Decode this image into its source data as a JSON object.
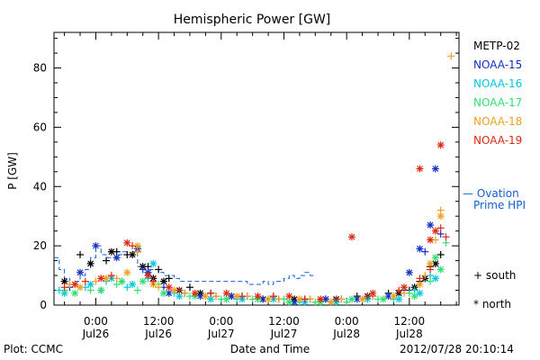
{
  "chart_data": {
    "type": "scatter",
    "title": "Hemispheric Power [GW]",
    "ylabel": "P [GW]",
    "xlabel": "Date and Time",
    "ylim": [
      0,
      92
    ],
    "yticks": [
      0,
      20,
      40,
      60,
      80
    ],
    "xlim_hours": [
      -8,
      69.5
    ],
    "x_ticks": [
      {
        "hour": 0,
        "time": "0:00",
        "date": "Jul26"
      },
      {
        "hour": 12,
        "time": "12:00",
        "date": "Jul26"
      },
      {
        "hour": 24,
        "time": "0:00",
        "date": "Jul27"
      },
      {
        "hour": 36,
        "time": "12:00",
        "date": "Jul27"
      },
      {
        "hour": 48,
        "time": "0:00",
        "date": "Jul28"
      },
      {
        "hour": 60,
        "time": "12:00",
        "date": "Jul28"
      }
    ],
    "legend": [
      "METP-02",
      "NOAA-15",
      "NOAA-16",
      "NOAA-17",
      "NOAA-18",
      "NOAA-19"
    ],
    "colors": {
      "METP-02": "#000000",
      "NOAA-15": "#1030c8",
      "NOAA-16": "#00c8e0",
      "NOAA-17": "#30e070",
      "NOAA-18": "#f0a020",
      "NOAA-19": "#e02810",
      "Ovation": "#1060d0"
    },
    "ovation_label_1": "— Ovation",
    "ovation_label_2": "Prime HPI",
    "marker_south": "+ south",
    "marker_north": "* north",
    "ovation": [
      [
        -8,
        16
      ],
      [
        -7,
        12
      ],
      [
        -6,
        9
      ],
      [
        -5,
        7
      ],
      [
        -4,
        8
      ],
      [
        -3,
        10
      ],
      [
        -2,
        12
      ],
      [
        -1,
        16
      ],
      [
        0,
        20
      ],
      [
        1,
        17
      ],
      [
        2,
        16
      ],
      [
        3,
        16
      ],
      [
        4,
        17
      ],
      [
        5,
        18
      ],
      [
        6,
        17
      ],
      [
        7,
        18
      ],
      [
        8,
        13
      ],
      [
        9,
        13
      ],
      [
        10,
        12
      ],
      [
        11,
        12
      ],
      [
        12,
        11
      ],
      [
        13,
        10
      ],
      [
        14,
        10
      ],
      [
        15,
        9
      ],
      [
        16,
        8
      ],
      [
        17,
        8
      ],
      [
        18,
        8
      ],
      [
        19,
        8
      ],
      [
        20,
        8
      ],
      [
        21,
        8
      ],
      [
        22,
        8
      ],
      [
        23,
        8
      ],
      [
        24,
        8
      ],
      [
        25,
        8
      ],
      [
        26,
        8
      ],
      [
        27,
        8
      ],
      [
        28,
        8
      ],
      [
        29,
        7
      ],
      [
        30,
        7
      ],
      [
        31,
        7
      ],
      [
        32,
        8
      ],
      [
        33,
        7
      ],
      [
        34,
        8
      ],
      [
        35,
        8
      ],
      [
        36,
        9
      ],
      [
        37,
        10
      ],
      [
        38,
        9
      ],
      [
        39,
        10
      ],
      [
        40,
        11
      ],
      [
        41,
        10
      ]
    ],
    "series": [
      {
        "name": "METP-02",
        "south": [
          [
            -3,
            17
          ],
          [
            2,
            15
          ],
          [
            4,
            18
          ],
          [
            6,
            17
          ],
          [
            8,
            18
          ],
          [
            10,
            13
          ],
          [
            12,
            12
          ],
          [
            14,
            9
          ],
          [
            18,
            6
          ],
          [
            22,
            4
          ],
          [
            28,
            3
          ],
          [
            34,
            3
          ],
          [
            40,
            2
          ],
          [
            44,
            2
          ],
          [
            50,
            3
          ],
          [
            56,
            4
          ],
          [
            60,
            5
          ],
          [
            62,
            8
          ],
          [
            64,
            13
          ],
          [
            66,
            17
          ]
        ],
        "north": [
          [
            -6,
            8
          ],
          [
            -1,
            14
          ],
          [
            3,
            18
          ],
          [
            7,
            17
          ],
          [
            9,
            13
          ],
          [
            11,
            9
          ],
          [
            13,
            8
          ],
          [
            16,
            5
          ],
          [
            20,
            4
          ],
          [
            26,
            3
          ],
          [
            32,
            2
          ],
          [
            38,
            2
          ],
          [
            46,
            2
          ],
          [
            52,
            3
          ],
          [
            58,
            4
          ],
          [
            61,
            6
          ],
          [
            63,
            9
          ],
          [
            65,
            14
          ]
        ]
      },
      {
        "name": "NOAA-15",
        "south": [
          [
            -5,
            6
          ],
          [
            1,
            5
          ],
          [
            5,
            8
          ],
          [
            9,
            12
          ],
          [
            13,
            6
          ],
          [
            17,
            4
          ],
          [
            23,
            3
          ],
          [
            29,
            3
          ],
          [
            35,
            2
          ],
          [
            41,
            2
          ],
          [
            47,
            2
          ],
          [
            53,
            3
          ],
          [
            59,
            5
          ],
          [
            63,
            18
          ],
          [
            66,
            24
          ]
        ],
        "north": [
          [
            -3,
            11
          ],
          [
            0,
            20
          ],
          [
            4,
            16
          ],
          [
            8,
            19
          ],
          [
            10,
            11
          ],
          [
            14,
            4
          ],
          [
            20,
            3
          ],
          [
            26,
            3
          ],
          [
            32,
            2
          ],
          [
            38,
            1
          ],
          [
            44,
            2
          ],
          [
            50,
            2
          ],
          [
            56,
            3
          ],
          [
            60,
            11
          ],
          [
            62,
            19
          ],
          [
            64,
            27
          ],
          [
            65,
            46
          ]
        ]
      },
      {
        "name": "NOAA-16",
        "south": [
          [
            -7,
            5
          ],
          [
            -2,
            6
          ],
          [
            2,
            8
          ],
          [
            6,
            6
          ],
          [
            10,
            9
          ],
          [
            15,
            4
          ],
          [
            21,
            3
          ],
          [
            27,
            2
          ],
          [
            33,
            2
          ],
          [
            39,
            1
          ],
          [
            45,
            1
          ],
          [
            51,
            2
          ],
          [
            57,
            2
          ],
          [
            61,
            5
          ],
          [
            64,
            10
          ]
        ],
        "north": [
          [
            -6,
            4
          ],
          [
            -1,
            7
          ],
          [
            3,
            9
          ],
          [
            7,
            7
          ],
          [
            11,
            14
          ],
          [
            16,
            3
          ],
          [
            22,
            2
          ],
          [
            28,
            2
          ],
          [
            34,
            2
          ],
          [
            40,
            1
          ],
          [
            46,
            1
          ],
          [
            52,
            2
          ],
          [
            58,
            2
          ],
          [
            62,
            4
          ],
          [
            65,
            9
          ]
        ]
      },
      {
        "name": "NOAA-17",
        "south": [
          [
            -6,
            5
          ],
          [
            -1,
            5
          ],
          [
            4,
            7
          ],
          [
            8,
            5
          ],
          [
            12,
            7
          ],
          [
            18,
            3
          ],
          [
            24,
            2
          ],
          [
            30,
            2
          ],
          [
            36,
            2
          ],
          [
            42,
            1
          ],
          [
            48,
            1
          ],
          [
            54,
            2
          ],
          [
            60,
            4
          ],
          [
            64,
            8
          ],
          [
            67,
            21
          ]
        ],
        "north": [
          [
            -4,
            4
          ],
          [
            1,
            5
          ],
          [
            5,
            8
          ],
          [
            9,
            8
          ],
          [
            13,
            4
          ],
          [
            19,
            3
          ],
          [
            25,
            2
          ],
          [
            31,
            2
          ],
          [
            37,
            1
          ],
          [
            43,
            1
          ],
          [
            49,
            2
          ],
          [
            55,
            2
          ],
          [
            61,
            3
          ],
          [
            65,
            16
          ],
          [
            66,
            12
          ]
        ]
      },
      {
        "name": "NOAA-18",
        "south": [
          [
            -5,
            7
          ],
          [
            0,
            8
          ],
          [
            4,
            9
          ],
          [
            8,
            18
          ],
          [
            12,
            6
          ],
          [
            17,
            4
          ],
          [
            23,
            3
          ],
          [
            29,
            3
          ],
          [
            35,
            2
          ],
          [
            41,
            2
          ],
          [
            47,
            2
          ],
          [
            53,
            3
          ],
          [
            59,
            4
          ],
          [
            63,
            10
          ],
          [
            65,
            22
          ],
          [
            66,
            32
          ],
          [
            68,
            84
          ]
        ],
        "north": [
          [
            -3,
            6
          ],
          [
            2,
            9
          ],
          [
            6,
            11
          ],
          [
            8,
            20
          ],
          [
            11,
            7
          ],
          [
            15,
            5
          ],
          [
            21,
            3
          ],
          [
            27,
            3
          ],
          [
            33,
            2
          ],
          [
            39,
            2
          ],
          [
            45,
            1
          ],
          [
            51,
            2
          ],
          [
            57,
            3
          ],
          [
            62,
            7
          ],
          [
            64,
            14
          ],
          [
            66,
            30
          ]
        ]
      },
      {
        "name": "NOAA-19",
        "south": [
          [
            -6,
            6
          ],
          [
            -2,
            8
          ],
          [
            3,
            10
          ],
          [
            7,
            20
          ],
          [
            11,
            8
          ],
          [
            16,
            5
          ],
          [
            22,
            4
          ],
          [
            28,
            3
          ],
          [
            34,
            3
          ],
          [
            40,
            2
          ],
          [
            46,
            2
          ],
          [
            52,
            3
          ],
          [
            58,
            5
          ],
          [
            62,
            9
          ],
          [
            64,
            12
          ],
          [
            66,
            26
          ],
          [
            67,
            23
          ]
        ],
        "north": [
          [
            -4,
            7
          ],
          [
            1,
            9
          ],
          [
            6,
            21
          ],
          [
            10,
            10
          ],
          [
            14,
            6
          ],
          [
            19,
            4
          ],
          [
            25,
            4
          ],
          [
            31,
            3
          ],
          [
            37,
            3
          ],
          [
            43,
            2
          ],
          [
            49,
            23
          ],
          [
            53,
            4
          ],
          [
            59,
            6
          ],
          [
            62,
            46
          ],
          [
            64,
            22
          ],
          [
            65,
            25
          ],
          [
            66,
            54
          ]
        ]
      }
    ]
  },
  "footer": {
    "plot_credit": "Plot: CCMC",
    "timestamp": "2012/07/28 20:10:14"
  }
}
